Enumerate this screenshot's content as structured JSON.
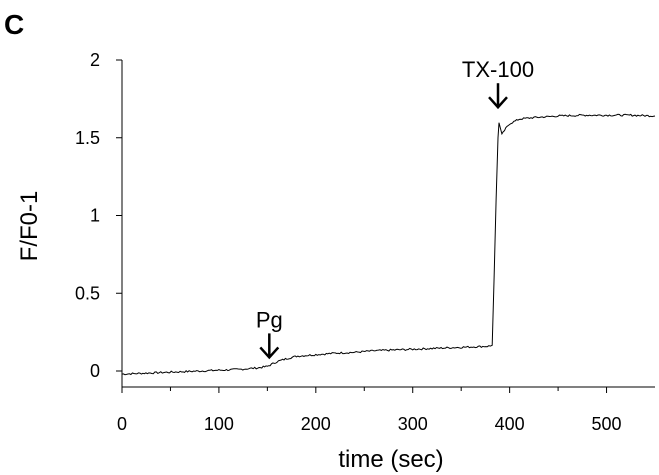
{
  "panel_label": "C",
  "chart_data": {
    "type": "line",
    "xlabel": "time (sec)",
    "ylabel": "F/F0-1",
    "xlim": [
      0,
      550
    ],
    "ylim": [
      0,
      2
    ],
    "x_ticks": [
      0,
      100,
      200,
      300,
      400,
      500
    ],
    "y_ticks": [
      0,
      0.5,
      1,
      1.5,
      2
    ],
    "x_tick_labels": [
      "0",
      "100",
      "200",
      "300",
      "400",
      "500"
    ],
    "y_tick_labels": [
      "0",
      "0.5",
      "1",
      "1.5",
      "2"
    ],
    "grid": false,
    "series": [
      {
        "color": "#000000",
        "points": [
          [
            0,
            -0.02
          ],
          [
            20,
            -0.015
          ],
          [
            40,
            -0.01
          ],
          [
            60,
            -0.005
          ],
          [
            80,
            0.0
          ],
          [
            100,
            0.005
          ],
          [
            120,
            0.01
          ],
          [
            140,
            0.02
          ],
          [
            150,
            0.03
          ],
          [
            160,
            0.06
          ],
          [
            170,
            0.08
          ],
          [
            180,
            0.095
          ],
          [
            200,
            0.105
          ],
          [
            220,
            0.115
          ],
          [
            240,
            0.12
          ],
          [
            260,
            0.13
          ],
          [
            280,
            0.135
          ],
          [
            300,
            0.14
          ],
          [
            320,
            0.145
          ],
          [
            340,
            0.15
          ],
          [
            360,
            0.155
          ],
          [
            380,
            0.16
          ],
          [
            382,
            0.165
          ],
          [
            384,
            0.6
          ],
          [
            386,
            1.1
          ],
          [
            388,
            1.5
          ],
          [
            389,
            1.6
          ],
          [
            392,
            1.52
          ],
          [
            396,
            1.56
          ],
          [
            400,
            1.59
          ],
          [
            410,
            1.62
          ],
          [
            425,
            1.63
          ],
          [
            450,
            1.64
          ],
          [
            475,
            1.645
          ],
          [
            500,
            1.645
          ],
          [
            525,
            1.645
          ],
          [
            550,
            1.64
          ]
        ]
      }
    ],
    "annotations": [
      {
        "text": "Pg",
        "x": 152,
        "arrow": "down"
      },
      {
        "text": "TX-100",
        "x": 388,
        "arrow": "down"
      }
    ]
  }
}
